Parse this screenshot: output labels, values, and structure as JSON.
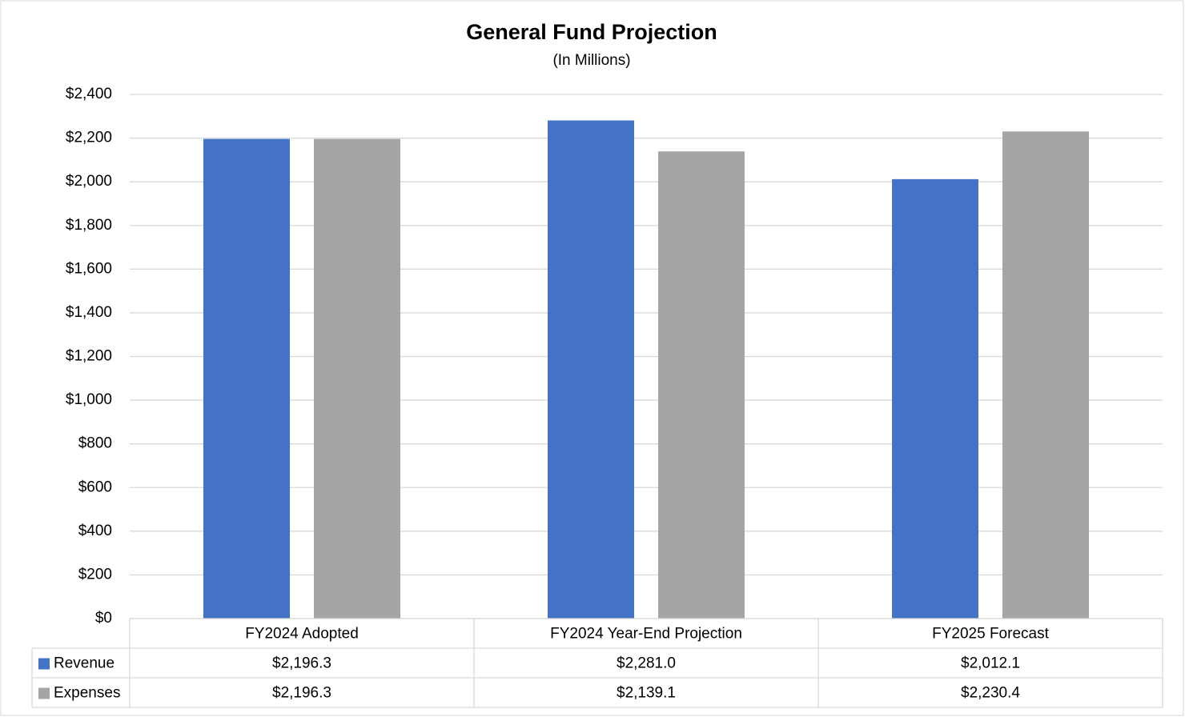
{
  "chart_data": {
    "type": "bar",
    "title": "General Fund Projection",
    "subtitle": "(In Millions)",
    "categories": [
      "FY2024 Adopted",
      "FY2024 Year-End Projection",
      "FY2025 Forecast"
    ],
    "series": [
      {
        "name": "Revenue",
        "color": "#4472c4",
        "values": [
          2196.3,
          2281.0,
          2012.1
        ],
        "value_labels": [
          "$2,196.3",
          "$2,281.0",
          "$2,012.1"
        ]
      },
      {
        "name": "Expenses",
        "color": "#a5a5a5",
        "values": [
          2196.3,
          2139.1,
          2230.4
        ],
        "value_labels": [
          "$2,196.3",
          "$2,139.1",
          "$2,230.4"
        ]
      }
    ],
    "ylim": [
      0,
      2400
    ],
    "yticks": [
      {
        "value": 0,
        "label": "$0"
      },
      {
        "value": 200,
        "label": "$200"
      },
      {
        "value": 400,
        "label": "$400"
      },
      {
        "value": 600,
        "label": "$600"
      },
      {
        "value": 800,
        "label": "$800"
      },
      {
        "value": 1000,
        "label": "$1,000"
      },
      {
        "value": 1200,
        "label": "$1,200"
      },
      {
        "value": 1400,
        "label": "$1,400"
      },
      {
        "value": 1600,
        "label": "$1,600"
      },
      {
        "value": 1800,
        "label": "$1,800"
      },
      {
        "value": 2000,
        "label": "$2,000"
      },
      {
        "value": 2200,
        "label": "$2,200"
      },
      {
        "value": 2400,
        "label": "$2,400"
      }
    ],
    "grid": true
  }
}
